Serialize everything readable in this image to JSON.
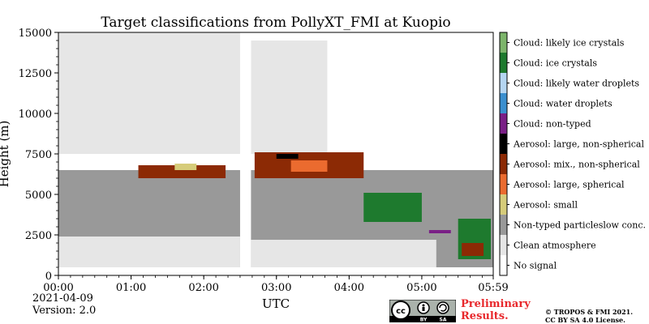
{
  "chart_data": {
    "type": "heatmap",
    "title": "Target classifications from PollyXT_FMI at Kuopio",
    "xlabel": "UTC",
    "ylabel": "Height (m)",
    "xlim": [
      "00:00",
      "05:59"
    ],
    "ylim": [
      0,
      15000
    ],
    "x_ticks": [
      "00:00",
      "01:00",
      "02:00",
      "03:00",
      "04:00",
      "05:00",
      "05:59"
    ],
    "y_ticks": [
      0,
      2500,
      5000,
      7500,
      10000,
      12500,
      15000
    ],
    "legend_placement": "right colorbar",
    "classes": [
      {
        "label": "No signal",
        "color": "#ffffff"
      },
      {
        "label": "Clean atmosphere",
        "color": "#e6e6e6"
      },
      {
        "label": "Non-typed particleslow conc.",
        "color": "#999999"
      },
      {
        "label": "Aerosol: small",
        "color": "#d6cc7a"
      },
      {
        "label": "Aerosol: large, spherical",
        "color": "#eb6b2f"
      },
      {
        "label": "Aerosol: mix., non-spherical",
        "color": "#8c2a05"
      },
      {
        "label": "Aerosol: large, non-spherical",
        "color": "#000000"
      },
      {
        "label": "Cloud: non-typed",
        "color": "#7a1f86"
      },
      {
        "label": "Cloud: water droplets",
        "color": "#3a8fcf"
      },
      {
        "label": "Cloud: likely water droplets",
        "color": "#b5d6f2"
      },
      {
        "label": "Cloud: ice crystals",
        "color": "#1e7a2e"
      },
      {
        "label": "Cloud: likely ice crystals",
        "color": "#7db56b"
      }
    ],
    "regions": [
      {
        "class": "Non-typed particleslow conc.",
        "t0": 0,
        "t1": 5.98,
        "h0": 500,
        "h1": 6500
      },
      {
        "class": "Clean atmosphere",
        "t0": 0,
        "t1": 2.5,
        "h0": 500,
        "h1": 2400
      },
      {
        "class": "Clean atmosphere",
        "t0": 2.65,
        "t1": 5.2,
        "h0": 500,
        "h1": 2200
      },
      {
        "class": "Clean atmosphere",
        "t0": 0,
        "t1": 2.5,
        "h0": 7500,
        "h1": 15000
      },
      {
        "class": "Clean atmosphere",
        "t0": 2.65,
        "t1": 3.7,
        "h0": 7500,
        "h1": 14500
      },
      {
        "class": "No signal",
        "t0": 2.5,
        "t1": 2.65,
        "h0": 0,
        "h1": 15000
      },
      {
        "class": "No signal",
        "t0": 0,
        "t1": 5.98,
        "h0": 0,
        "h1": 500
      },
      {
        "class": "No signal",
        "t0": 3.7,
        "t1": 5.98,
        "h0": 8500,
        "h1": 15000
      },
      {
        "class": "Aerosol: mix., non-spherical",
        "t0": 1.1,
        "t1": 2.3,
        "h0": 6000,
        "h1": 6800
      },
      {
        "class": "Aerosol: mix., non-spherical",
        "t0": 2.7,
        "t1": 4.2,
        "h0": 6000,
        "h1": 7600
      },
      {
        "class": "Aerosol: small",
        "t0": 1.6,
        "t1": 1.9,
        "h0": 6500,
        "h1": 6900
      },
      {
        "class": "Aerosol: large, spherical",
        "t0": 3.2,
        "t1": 3.7,
        "h0": 6400,
        "h1": 7100
      },
      {
        "class": "Aerosol: large, non-spherical",
        "t0": 3.0,
        "t1": 3.3,
        "h0": 7200,
        "h1": 7500
      },
      {
        "class": "Cloud: ice crystals",
        "t0": 4.2,
        "t1": 5.0,
        "h0": 3300,
        "h1": 5100
      },
      {
        "class": "Cloud: ice crystals",
        "t0": 5.5,
        "t1": 5.95,
        "h0": 1000,
        "h1": 3500
      },
      {
        "class": "Cloud: non-typed",
        "t0": 5.1,
        "t1": 5.4,
        "h0": 2600,
        "h1": 2800
      },
      {
        "class": "Aerosol: mix., non-spherical",
        "t0": 5.55,
        "t1": 5.85,
        "h0": 1200,
        "h1": 2000
      }
    ]
  },
  "footer": {
    "date": "2021-04-09",
    "version": "Version: 2.0",
    "preliminary_line1": "Preliminary",
    "preliminary_line2": "Results.",
    "copyright_line1": "© TROPOS & FMI 2021.",
    "copyright_line2": "CC BY SA 4.0 License.",
    "license_by": "BY",
    "license_sa": "SA"
  }
}
